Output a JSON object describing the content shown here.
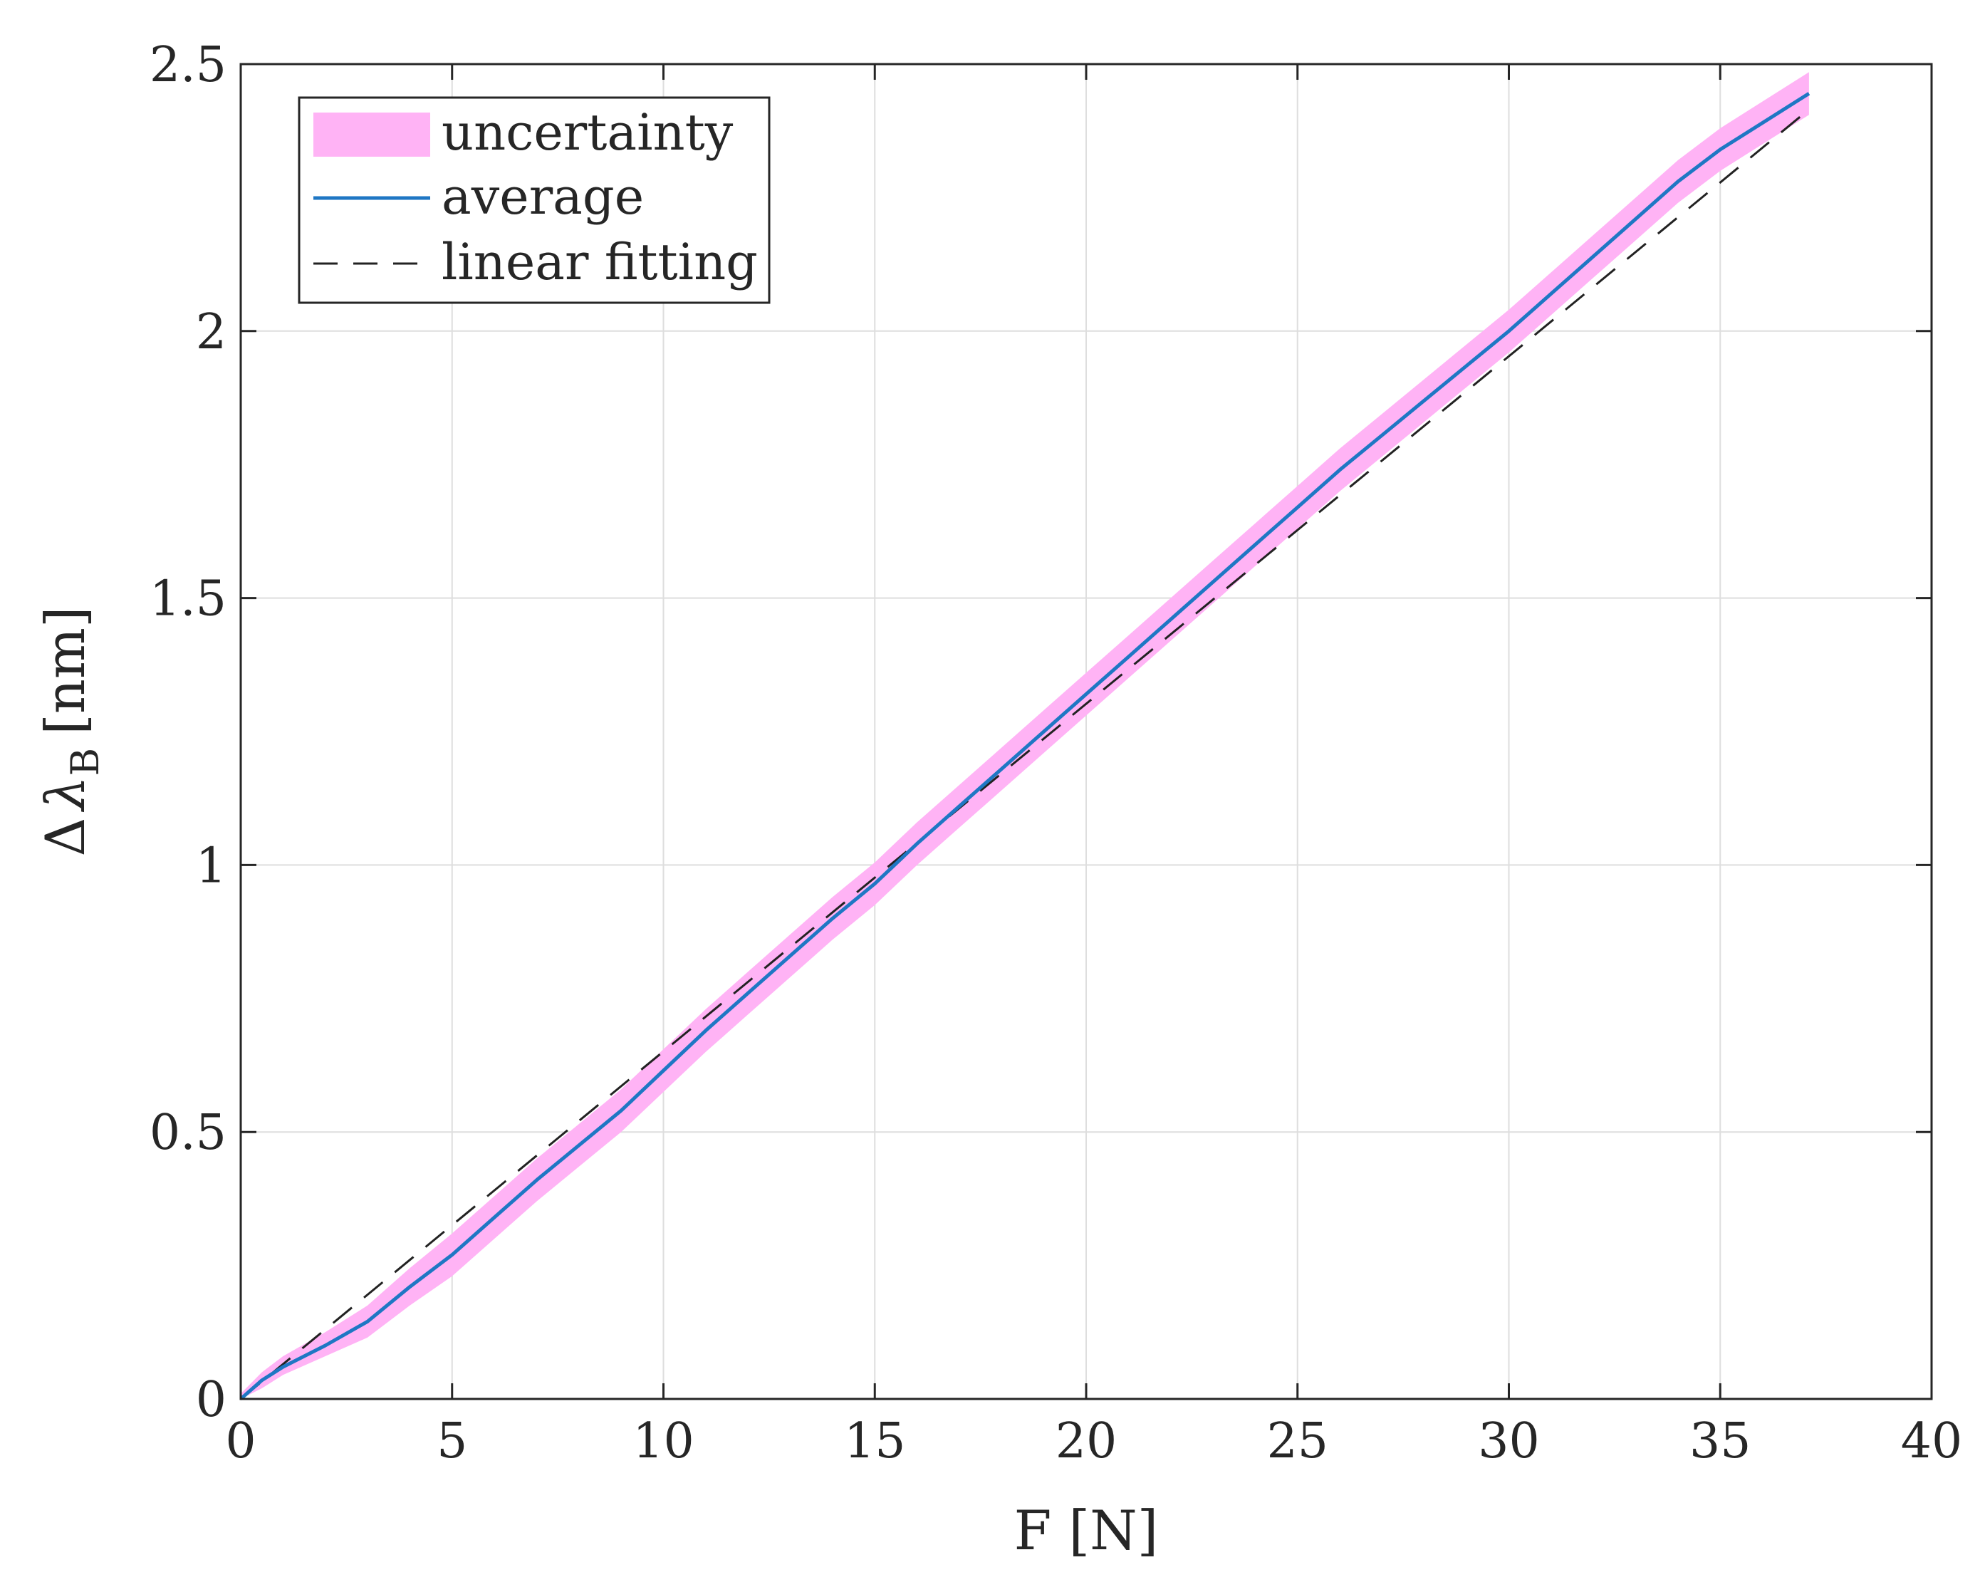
{
  "chart_data": {
    "type": "line",
    "title": "",
    "xlabel": "F [N]",
    "ylabel": {
      "main": "Δ",
      "symbol": "λ",
      "subscript": "B",
      "unit": "[nm]"
    },
    "xlim": [
      0,
      40
    ],
    "ylim": [
      0,
      2.5
    ],
    "xticks": [
      0,
      5,
      10,
      15,
      20,
      25,
      30,
      35,
      40
    ],
    "xtick_labels": [
      "0",
      "5",
      "10",
      "15",
      "20",
      "25",
      "30",
      "35",
      "40"
    ],
    "yticks": [
      0,
      0.5,
      1,
      1.5,
      2,
      2.5
    ],
    "ytick_labels": [
      "0",
      "0.5",
      "1",
      "1.5",
      "2",
      "2.5"
    ],
    "grid": true,
    "legend": {
      "placement": "top-left",
      "entries": [
        {
          "label": "uncertainty",
          "style": "band",
          "color": "#ffb3f5"
        },
        {
          "label": "average",
          "style": "solid",
          "color": "#1f77c4"
        },
        {
          "label": "linear fitting",
          "style": "dashed",
          "color": "#222222"
        }
      ]
    },
    "series": [
      {
        "name": "average",
        "style": "line",
        "color": "#1f77c4",
        "x": [
          0,
          0.5,
          1,
          2,
          3,
          4,
          5,
          6,
          7,
          8,
          9,
          10,
          11,
          12,
          13,
          14,
          15,
          16,
          17,
          18,
          19,
          20,
          21,
          22,
          23,
          24,
          25,
          26,
          27,
          28,
          29,
          30,
          31,
          32,
          33,
          34,
          35,
          36,
          37.1
        ],
        "y": [
          0,
          0.035,
          0.06,
          0.1,
          0.145,
          0.21,
          0.27,
          0.34,
          0.41,
          0.475,
          0.54,
          0.615,
          0.69,
          0.76,
          0.83,
          0.9,
          0.965,
          1.04,
          1.11,
          1.18,
          1.25,
          1.32,
          1.39,
          1.46,
          1.53,
          1.6,
          1.67,
          1.74,
          1.805,
          1.87,
          1.935,
          2.0,
          2.07,
          2.14,
          2.21,
          2.28,
          2.34,
          2.39,
          2.445
        ]
      },
      {
        "name": "uncertainty",
        "style": "band",
        "color": "#ffb3f5",
        "x": [
          0,
          0.5,
          1,
          2,
          3,
          4,
          5,
          6,
          7,
          8,
          9,
          10,
          11,
          12,
          13,
          14,
          15,
          16,
          17,
          18,
          19,
          20,
          21,
          22,
          23,
          24,
          25,
          26,
          27,
          28,
          29,
          30,
          31,
          32,
          33,
          34,
          35,
          36,
          37.1
        ],
        "upper": [
          0.01,
          0.05,
          0.08,
          0.125,
          0.175,
          0.245,
          0.31,
          0.38,
          0.45,
          0.515,
          0.58,
          0.655,
          0.73,
          0.8,
          0.87,
          0.94,
          1.005,
          1.08,
          1.15,
          1.22,
          1.29,
          1.36,
          1.43,
          1.5,
          1.57,
          1.64,
          1.71,
          1.78,
          1.845,
          1.91,
          1.975,
          2.04,
          2.11,
          2.18,
          2.25,
          2.32,
          2.38,
          2.43,
          2.485
        ],
        "lower": [
          0,
          0.02,
          0.045,
          0.08,
          0.115,
          0.175,
          0.23,
          0.3,
          0.37,
          0.435,
          0.5,
          0.575,
          0.65,
          0.72,
          0.79,
          0.86,
          0.925,
          1.0,
          1.07,
          1.14,
          1.21,
          1.28,
          1.35,
          1.42,
          1.49,
          1.56,
          1.63,
          1.7,
          1.765,
          1.83,
          1.895,
          1.96,
          2.03,
          2.1,
          2.17,
          2.24,
          2.3,
          2.35,
          2.405
        ]
      },
      {
        "name": "linear fitting",
        "style": "dashed",
        "color": "#222222",
        "x": [
          0,
          37.1
        ],
        "y": [
          0,
          2.415
        ]
      }
    ]
  }
}
